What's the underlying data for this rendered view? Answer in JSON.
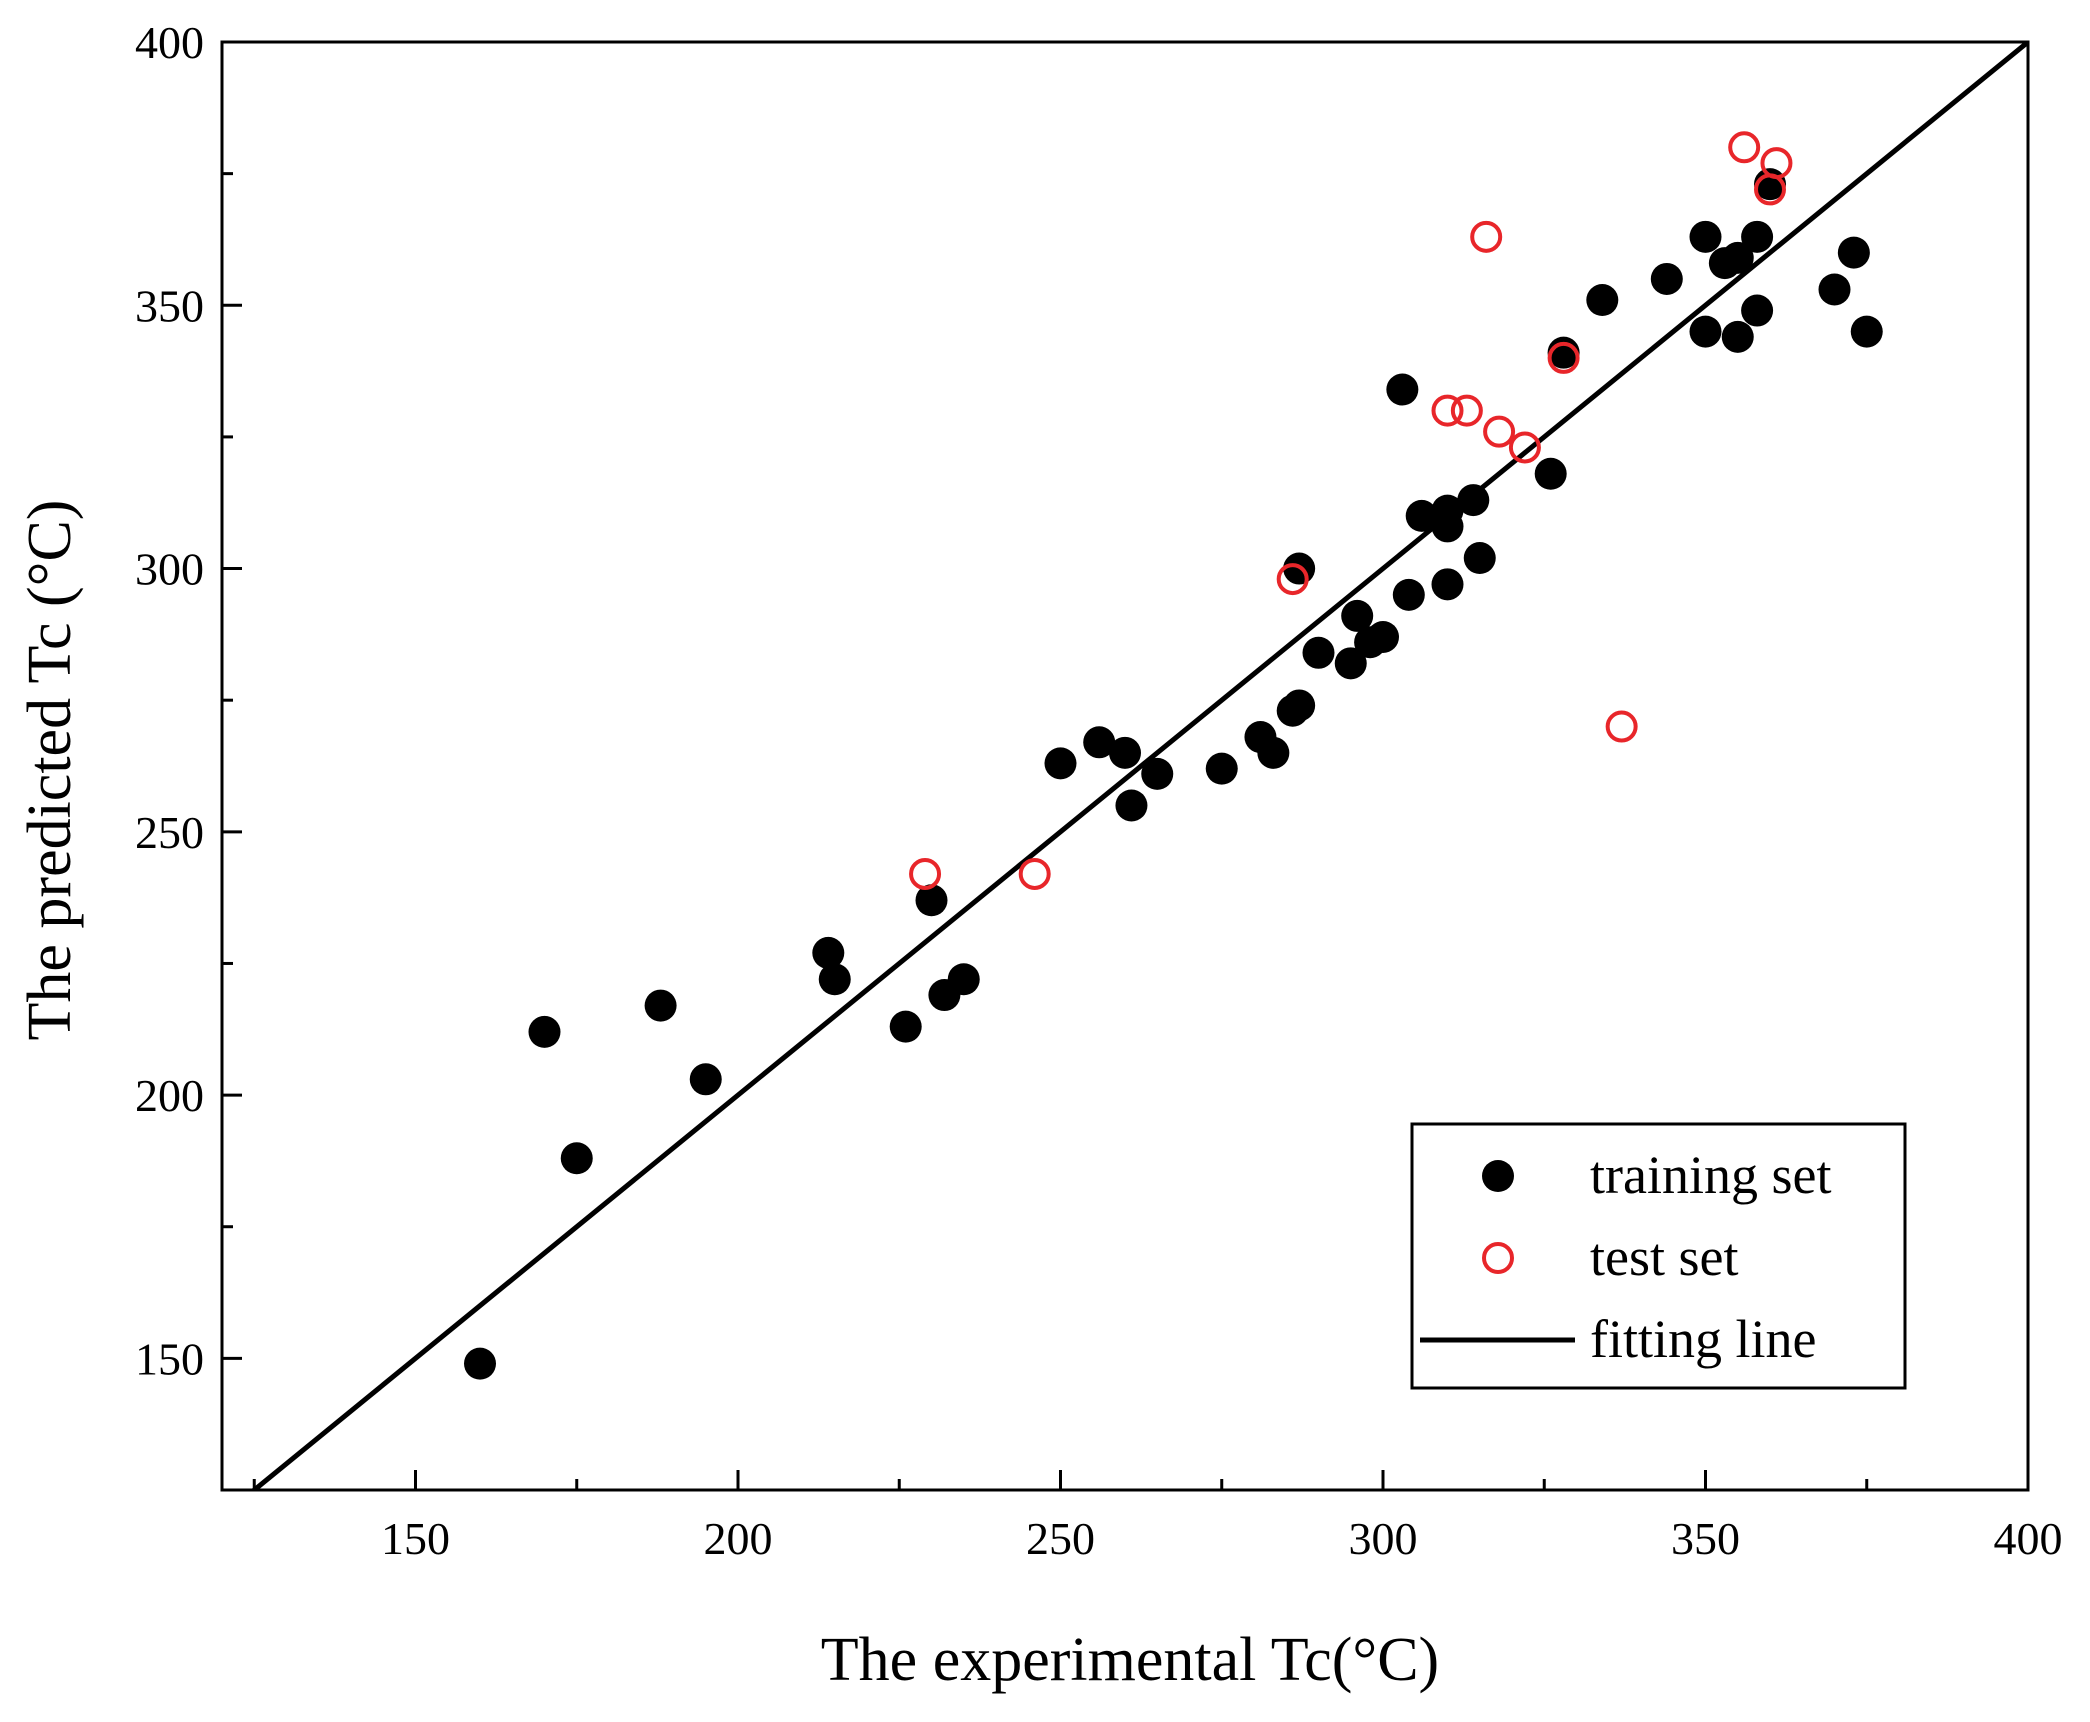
{
  "chart_data": {
    "type": "scatter",
    "title": "",
    "xlabel": "The experimental Tc(°C)",
    "ylabel": "The predicted Tc (°C)",
    "xlim": [
      120,
      400
    ],
    "ylim": [
      125,
      400
    ],
    "xticks": [
      150,
      200,
      250,
      300,
      350,
      400
    ],
    "yticks": [
      150,
      200,
      250,
      300,
      350,
      400
    ],
    "xtick_labels": [
      "150",
      "200",
      "250",
      "300",
      "350",
      "400"
    ],
    "ytick_labels": [
      "150",
      "200",
      "250",
      "300",
      "350",
      "400"
    ],
    "grid": false,
    "legend_position": "bottom-right",
    "series": [
      {
        "name": "training set",
        "marker": "filled-circle",
        "color": "#000000",
        "points": [
          [
            160,
            149
          ],
          [
            170,
            212
          ],
          [
            175,
            188
          ],
          [
            188,
            217
          ],
          [
            195,
            203
          ],
          [
            214,
            227
          ],
          [
            215,
            222
          ],
          [
            226,
            213
          ],
          [
            230,
            237
          ],
          [
            232,
            219
          ],
          [
            235,
            222
          ],
          [
            250,
            263
          ],
          [
            256,
            267
          ],
          [
            260,
            265
          ],
          [
            261,
            255
          ],
          [
            265,
            261
          ],
          [
            275,
            262
          ],
          [
            281,
            268
          ],
          [
            283,
            265
          ],
          [
            286,
            273
          ],
          [
            287,
            274
          ],
          [
            287,
            300
          ],
          [
            290,
            284
          ],
          [
            295,
            282
          ],
          [
            296,
            291
          ],
          [
            298,
            286
          ],
          [
            300,
            287
          ],
          [
            303,
            334
          ],
          [
            304,
            295
          ],
          [
            306,
            310
          ],
          [
            310,
            311
          ],
          [
            310,
            308
          ],
          [
            310,
            297
          ],
          [
            314,
            313
          ],
          [
            315,
            302
          ],
          [
            326,
            318
          ],
          [
            328,
            341
          ],
          [
            334,
            351
          ],
          [
            344,
            355
          ],
          [
            350,
            363
          ],
          [
            350,
            345
          ],
          [
            353,
            358
          ],
          [
            355,
            359
          ],
          [
            355,
            344
          ],
          [
            358,
            363
          ],
          [
            358,
            349
          ],
          [
            360,
            373
          ],
          [
            370,
            353
          ],
          [
            373,
            360
          ],
          [
            375,
            345
          ]
        ]
      },
      {
        "name": "test set",
        "marker": "open-circle",
        "color": "#e8262a",
        "points": [
          [
            229,
            242
          ],
          [
            246,
            242
          ],
          [
            286,
            298
          ],
          [
            310,
            330
          ],
          [
            313,
            330
          ],
          [
            316,
            363
          ],
          [
            318,
            326
          ],
          [
            322,
            323
          ],
          [
            328,
            340
          ],
          [
            337,
            270
          ],
          [
            356,
            380
          ],
          [
            360,
            372
          ],
          [
            361,
            377
          ]
        ]
      },
      {
        "name": "fitting line",
        "marker": "line",
        "color": "#000000",
        "points": [
          [
            120,
            120
          ],
          [
            400,
            400
          ]
        ]
      }
    ]
  }
}
